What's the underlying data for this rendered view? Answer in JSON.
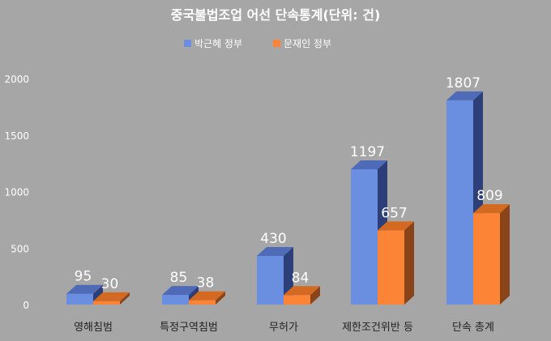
{
  "chart_data": {
    "type": "bar",
    "title": "중국불법조업 어선 단속통계(단위:  건)",
    "xlabel": "",
    "ylabel": "",
    "categories": [
      "영해침범",
      "특정구역침범",
      "무허가",
      "제한조건위반 등",
      "단속 총계"
    ],
    "series": [
      {
        "name": "박근혜 정부",
        "values": [
          95,
          85,
          430,
          1197,
          1807
        ]
      },
      {
        "name": "문재인 정부",
        "values": [
          30,
          38,
          84,
          657,
          809
        ]
      }
    ],
    "data_labels": [
      [
        "95",
        "85",
        "430",
        "1197",
        "1807"
      ],
      [
        "30",
        "38",
        "84",
        "657",
        "809"
      ]
    ],
    "ylim": [
      0,
      2000
    ],
    "yticks": [
      "0",
      "500",
      "1000",
      "1500",
      "2000"
    ],
    "grid": false,
    "legend_position": "top-center",
    "style": "3d-bar"
  },
  "colors": {
    "background": "#a6a6a6",
    "title": "#ffffff",
    "text": "#ffffff",
    "axis_text": "#ffffff",
    "category_text": "#222222",
    "series": [
      {
        "front": "#6a8ee0",
        "top": "#4f6bb8",
        "side": "#2c3f78"
      },
      {
        "front": "#fb8437",
        "top": "#d46a22",
        "side": "#8a4419"
      }
    ]
  }
}
